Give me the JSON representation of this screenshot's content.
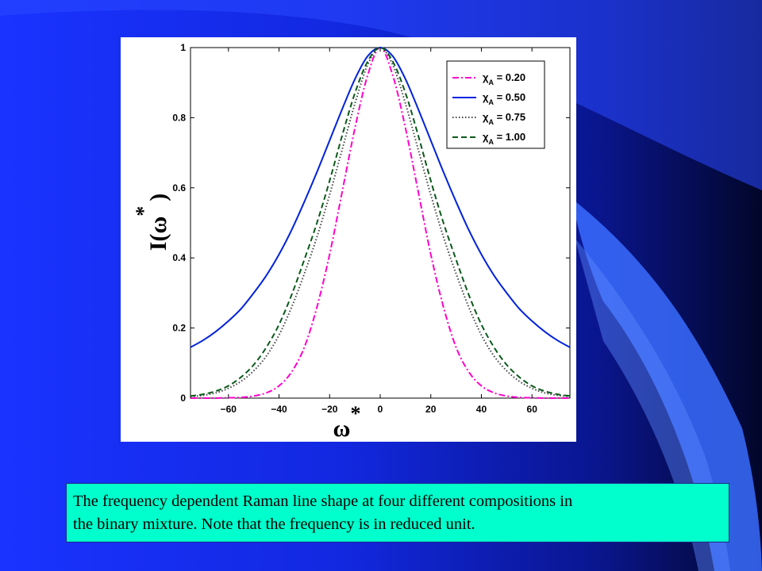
{
  "caption": {
    "line1": "The frequency dependent Raman line shape at four different compositions in",
    "line2": "the binary mixture. Note that the frequency is in reduced unit."
  },
  "colors": {
    "background": "#1a33ff",
    "caption_background": "#00ffcc",
    "plot_background": "#ffffff"
  },
  "chart_data": {
    "type": "line",
    "xlabel_main": "ω",
    "xlabel_sup": "*",
    "ylabel_main": "I(ω",
    "ylabel_sup": "*",
    "ylabel_close": ")",
    "xlim": [
      -75,
      75
    ],
    "ylim": [
      0,
      1
    ],
    "x_ticks": [
      -60,
      -40,
      -20,
      0,
      20,
      40,
      60
    ],
    "x_tick_labels": [
      "−60",
      "−40",
      "−20",
      "0",
      "20",
      "40",
      "60"
    ],
    "y_ticks": [
      0,
      0.2,
      0.4,
      0.6,
      0.8,
      1
    ],
    "y_tick_labels": [
      "0",
      "0.2",
      "0.4",
      "0.6",
      "0.8",
      "1"
    ],
    "grid": false,
    "legend_position": "top-right",
    "x": [
      -75,
      -70,
      -65,
      -60,
      -55,
      -50,
      -45,
      -40,
      -35,
      -30,
      -25,
      -20,
      -15,
      -10,
      -5,
      0,
      5,
      10,
      15,
      20,
      25,
      30,
      35,
      40,
      45,
      50,
      55,
      60,
      65,
      70,
      75
    ],
    "series": [
      {
        "name": "χA = 0.20",
        "legend_main": "χ",
        "legend_sub": "A",
        "legend_value": " = 0.20",
        "color": "#ff00cc",
        "dash": "8,3,2,3",
        "values": [
          0.0,
          0.0,
          0.0,
          0.001,
          0.002,
          0.006,
          0.015,
          0.035,
          0.075,
          0.145,
          0.26,
          0.41,
          0.59,
          0.77,
          0.92,
          1.0,
          0.92,
          0.77,
          0.59,
          0.41,
          0.26,
          0.145,
          0.075,
          0.035,
          0.015,
          0.006,
          0.002,
          0.001,
          0.0,
          0.0,
          0.0
        ]
      },
      {
        "name": "χA = 0.50",
        "legend_main": "χ",
        "legend_sub": "A",
        "legend_value": " = 0.50",
        "color": "#0022dd",
        "dash": "",
        "values": [
          0.145,
          0.165,
          0.19,
          0.22,
          0.255,
          0.3,
          0.35,
          0.41,
          0.48,
          0.56,
          0.645,
          0.735,
          0.825,
          0.91,
          0.975,
          1.0,
          0.975,
          0.91,
          0.825,
          0.735,
          0.645,
          0.56,
          0.48,
          0.41,
          0.35,
          0.3,
          0.255,
          0.22,
          0.19,
          0.165,
          0.145
        ]
      },
      {
        "name": "χA = 0.75",
        "legend_main": "χ",
        "legend_sub": "A",
        "legend_value": " = 0.75",
        "color": "#444444",
        "dash": "1.5,2.5",
        "values": [
          0.004,
          0.008,
          0.015,
          0.028,
          0.048,
          0.078,
          0.12,
          0.18,
          0.26,
          0.355,
          0.46,
          0.58,
          0.71,
          0.84,
          0.95,
          1.0,
          0.95,
          0.84,
          0.71,
          0.58,
          0.46,
          0.355,
          0.26,
          0.18,
          0.12,
          0.078,
          0.048,
          0.028,
          0.015,
          0.008,
          0.004
        ]
      },
      {
        "name": "χA = 1.00",
        "legend_main": "χ",
        "legend_sub": "A",
        "legend_value": " = 1.00",
        "color": "#0a5a1a",
        "dash": "7,4",
        "values": [
          0.006,
          0.011,
          0.02,
          0.035,
          0.06,
          0.095,
          0.145,
          0.21,
          0.295,
          0.395,
          0.5,
          0.62,
          0.75,
          0.87,
          0.96,
          1.0,
          0.96,
          0.87,
          0.75,
          0.62,
          0.5,
          0.395,
          0.295,
          0.21,
          0.145,
          0.095,
          0.06,
          0.035,
          0.02,
          0.011,
          0.006
        ]
      }
    ]
  }
}
